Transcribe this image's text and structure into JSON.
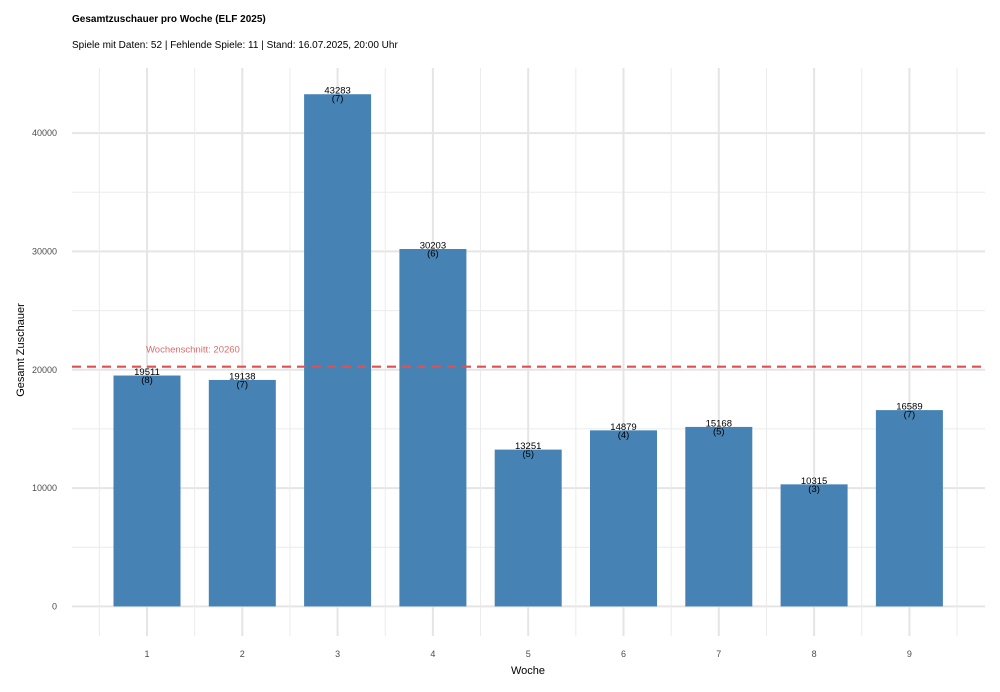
{
  "chart_data": {
    "type": "bar",
    "title": "Gesamtzuschauer pro Woche (ELF 2025)",
    "subtitle": "Spiele mit Daten: 52 | Fehlende Spiele: 11 | Stand: 16.07.2025, 20:00 Uhr",
    "xlabel": "Woche",
    "ylabel": "Gesamt Zuschauer",
    "categories": [
      "1",
      "2",
      "3",
      "4",
      "5",
      "6",
      "7",
      "8",
      "9"
    ],
    "values": [
      19511,
      19138,
      43283,
      30203,
      13251,
      14879,
      15168,
      10315,
      16589
    ],
    "games": [
      "(8)",
      "(7)",
      "(7)",
      "(6)",
      "(5)",
      "(4)",
      "(5)",
      "(3)",
      "(7)"
    ],
    "y_ticks": [
      0,
      10000,
      20000,
      30000,
      40000
    ],
    "ylim": [
      -2500,
      45500
    ],
    "grid": true,
    "bar_color": "#4682b4",
    "average": {
      "value": 20260,
      "label": "Wochenschnitt: 20260",
      "color": "#e05050"
    }
  }
}
